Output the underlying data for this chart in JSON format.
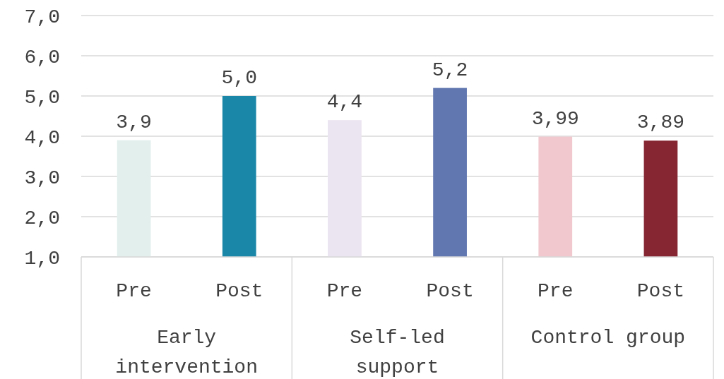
{
  "chart_data": {
    "type": "bar",
    "categories": [
      "Pre",
      "Post",
      "Pre",
      "Post",
      "Pre",
      "Post"
    ],
    "values": [
      3.9,
      5.0,
      4.4,
      5.2,
      3.99,
      3.89
    ],
    "colors": [
      "#e2efec",
      "#1a87a8",
      "#ebe4f1",
      "#6177b0",
      "#f0c8ce",
      "#862633"
    ],
    "value_labels": [
      "3,9",
      "5,0",
      "4,4",
      "5,2",
      "3,99",
      "3,89"
    ],
    "annotations": [
      "Early intervention",
      "Self-led support",
      "Control group"
    ],
    "ylim": [
      1,
      7
    ],
    "yticks": [
      {
        "value": 1,
        "label": "1,0"
      },
      {
        "value": 2,
        "label": "2,0"
      },
      {
        "value": 3,
        "label": "3,0"
      },
      {
        "value": 4,
        "label": "4,0"
      },
      {
        "value": 5,
        "label": "5,0"
      },
      {
        "value": 6,
        "label": "6,0"
      },
      {
        "value": 7,
        "label": "7,0"
      }
    ],
    "grid": "y"
  }
}
